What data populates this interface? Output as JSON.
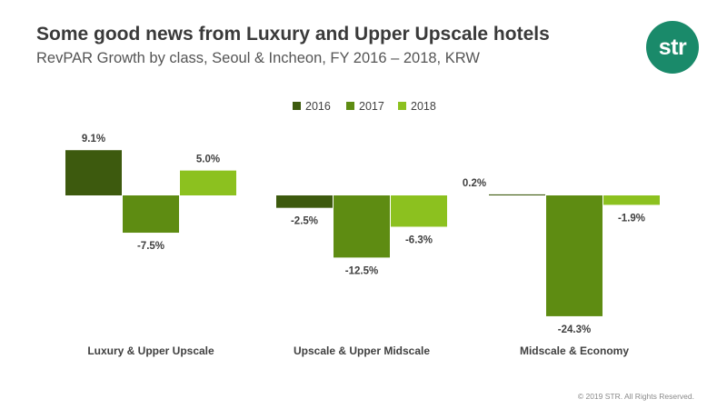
{
  "header": {
    "title": "Some good news from Luxury and Upper Upscale hotels",
    "subtitle": "RevPAR Growth by class, Seoul & Incheon, FY 2016 – 2018, KRW"
  },
  "logo": {
    "text": "str",
    "color": "#1a8a6a"
  },
  "footer": {
    "copyright": "© 2019 STR. All Rights Reserved."
  },
  "chart_data": {
    "type": "bar",
    "categories": [
      "Luxury & Upper Upscale",
      "Upscale & Upper Midscale",
      "Midscale & Economy"
    ],
    "series": [
      {
        "name": "2016",
        "color": "#3d5a0e",
        "values": [
          9.1,
          -2.5,
          0.2
        ],
        "labels": [
          "9.1%",
          "-2.5%",
          "0.2%"
        ]
      },
      {
        "name": "2017",
        "color": "#5e8c12",
        "values": [
          -7.5,
          -12.5,
          -24.3
        ],
        "labels": [
          "-7.5%",
          "-12.5%",
          "-24.3%"
        ]
      },
      {
        "name": "2018",
        "color": "#8cc11f",
        "values": [
          5.0,
          -6.3,
          -1.9
        ],
        "labels": [
          "5.0%",
          "-6.3%",
          "-1.9%"
        ]
      }
    ],
    "ylim": [
      -25,
      10
    ],
    "grid": false,
    "legend": "top-center",
    "title": "",
    "xlabel": "",
    "ylabel": ""
  }
}
